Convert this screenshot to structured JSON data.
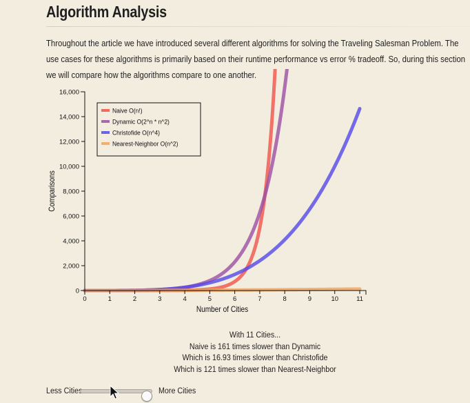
{
  "page": {
    "title": "Algorithm Analysis",
    "intro": "Throughout the article we have introduced several different algorithms for solving the Traveling Salesman Problem. The use cases for these algorithms is primarily based on their runtime performance vs error % tradeoff. So, during this section we will compare how the algorithms compare to one another."
  },
  "chart_data": {
    "type": "line",
    "title": "",
    "xlabel": "Number of Cities",
    "ylabel": "Comparisons",
    "xlim": [
      0,
      11
    ],
    "ylim": [
      0,
      16000
    ],
    "x_ticks": [
      "0",
      "1",
      "2",
      "3",
      "4",
      "5",
      "6",
      "7",
      "8",
      "9",
      "10",
      "11"
    ],
    "y_ticks": [
      "0",
      "2,000",
      "4,000",
      "6,000",
      "8,000",
      "10,000",
      "12,000",
      "14,000",
      "16,000"
    ],
    "legend_position": "top-left",
    "series": [
      {
        "name": "Naive O(n!)",
        "formula": "factorial",
        "color": "#f0524a"
      },
      {
        "name": "Dynamic O(2^n * n^2)",
        "formula": "pow2_n_sq",
        "color": "#9b4fa4"
      },
      {
        "name": "Christofide O(n^4)",
        "formula": "n4",
        "color": "#5448e8"
      },
      {
        "name": "Nearest-Neighbor O(n^2)",
        "formula": "n2",
        "color": "#f2a35a"
      }
    ]
  },
  "summary": {
    "line1": "With 11 Cities...",
    "line2": "Naive is 161 times slower than Dynamic",
    "line3": "Which is 16.93 times slower than Christofide",
    "line4": "Which is 121 times slower than Nearest-Neighbor"
  },
  "slider": {
    "left_label": "Less Cities",
    "right_label": "More Cities",
    "value": 11,
    "min": 4,
    "max": 15
  }
}
